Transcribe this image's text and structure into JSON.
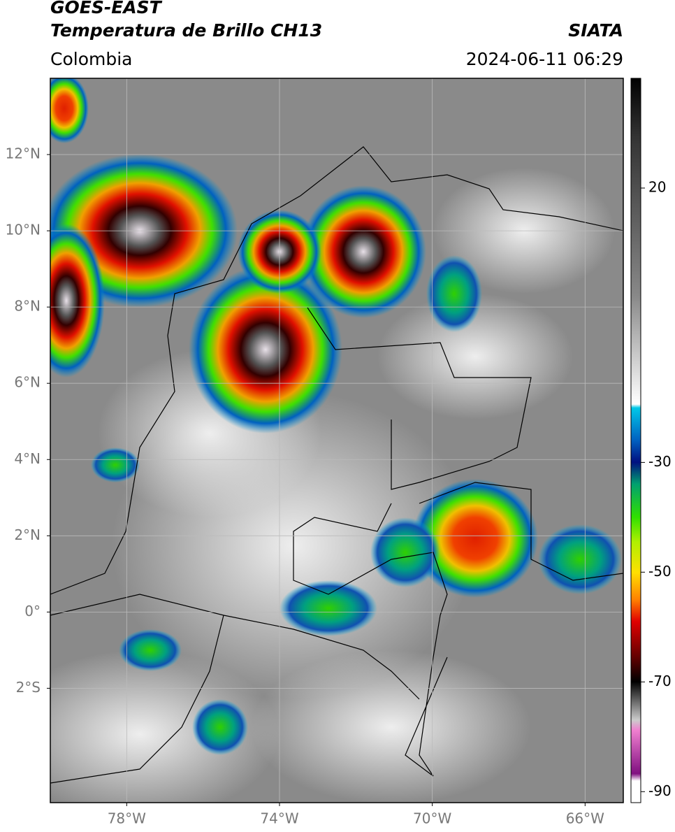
{
  "header": {
    "satellite": "GOES-EAST",
    "product": "Temperatura de Brillo CH13",
    "source": "SIATA",
    "region": "Colombia",
    "timestamp": "2024-06-11 06:29"
  },
  "map": {
    "xlim": [
      -80,
      -65
    ],
    "ylim": [
      -5,
      14
    ],
    "xticks": [
      {
        "value": -78,
        "label": "78°W"
      },
      {
        "value": -74,
        "label": "74°W"
      },
      {
        "value": -70,
        "label": "70°W"
      },
      {
        "value": -66,
        "label": "66°W"
      }
    ],
    "yticks": [
      {
        "value": 12,
        "label": "12°N"
      },
      {
        "value": 10,
        "label": "10°N"
      },
      {
        "value": 8,
        "label": "8°N"
      },
      {
        "value": 6,
        "label": "6°N"
      },
      {
        "value": 4,
        "label": "4°N"
      },
      {
        "value": 2,
        "label": "2°N"
      },
      {
        "value": 0,
        "label": "0°"
      },
      {
        "value": -2,
        "label": "2°S"
      }
    ],
    "grid": true
  },
  "colorbar": {
    "lim": [
      -92,
      40
    ],
    "ticks": [
      20,
      -30,
      -50,
      -70,
      -90
    ]
  }
}
